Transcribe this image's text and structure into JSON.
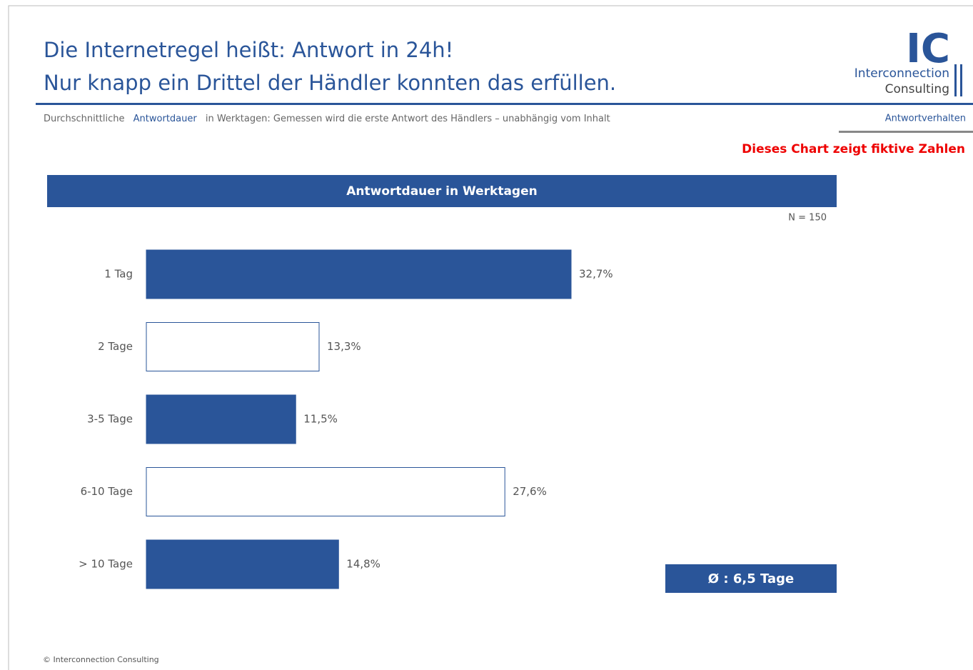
{
  "header": {
    "title_lines": [
      "Die Internetregel heißt: Antwort in 24h!",
      "Nur knapp ein Drittel der Händler konnten das erfüllen."
    ],
    "logo": {
      "mark": "IC",
      "line1": "Interconnection",
      "line2": "Consulting"
    },
    "subtitle_parts": [
      "Durchschnittliche",
      "Antwortdauer",
      "in Werktagen:  Gemessen wird die erste Antwort des Händlers – unabhängig vom Inhalt"
    ],
    "section": "Antwortverhalten",
    "disclaimer": "Dieses Chart zeigt fiktive Zahlen"
  },
  "chart_data": {
    "type": "bar",
    "orientation": "horizontal",
    "title": "Antwortdauer in Werktagen",
    "note": "N = 150",
    "categories": [
      "1 Tag",
      "2 Tage",
      "3-5 Tage",
      "6-10 Tage",
      "> 10 Tage"
    ],
    "values": [
      32.7,
      13.3,
      11.5,
      27.6,
      14.8
    ],
    "value_labels": [
      "32,7%",
      "13,3%",
      "11,5%",
      "27,6%",
      "14,8%"
    ],
    "colors": [
      "#2a5599",
      "#ffffff",
      "#2a5599",
      "#ffffff",
      "#2a5599"
    ],
    "annotation": "Ø : 6,5 Tage"
  },
  "footer": "© Interconnection Consulting"
}
